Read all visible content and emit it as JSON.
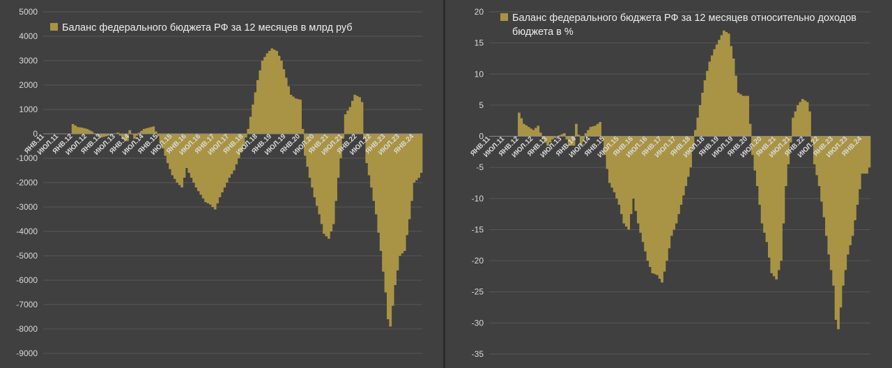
{
  "colors": {
    "background": "#404040",
    "bar": "#a99445",
    "grid": "#575757",
    "text": "#d9d9d9"
  },
  "chart_data": [
    {
      "type": "bar",
      "legend_label": "Баланс федерального бюджета РФ за 12 месяцев в млрд руб",
      "legend_placement": "top-left",
      "grid": true,
      "ylim": [
        -9000,
        5000
      ],
      "y_ticks": [
        "5000",
        "4000",
        "3000",
        "2000",
        "1000",
        "0",
        "-1000",
        "-2000",
        "-3000",
        "-4000",
        "-5000",
        "-6000",
        "-7000",
        "-8000",
        "-9000"
      ],
      "x_tick_labels": [
        "ЯНВ.11",
        "ИЮЛ.11",
        "ЯНВ.12",
        "ИЮЛ.12",
        "ЯНВ.13",
        "ИЮЛ.13",
        "ЯНВ.14",
        "ИЮЛ.14",
        "ЯНВ.15",
        "ИЮЛ.15",
        "ЯНВ.16",
        "ИЮЛ.16",
        "ЯНВ.17",
        "ИЮЛ.17",
        "ЯНВ.18",
        "ИЮЛ.18",
        "ЯНВ.19",
        "ИЮЛ.19",
        "ЯНВ.20",
        "ИЮЛ.20",
        "ЯНВ.21",
        "ИЮЛ.21",
        "ЯНВ.22",
        "ИЮЛ.22",
        "ЯНВ.23",
        "ИЮЛ.23",
        "ЯНВ.24"
      ],
      "months": 160,
      "anchors": [
        [
          0,
          0
        ],
        [
          11,
          0
        ],
        [
          12,
          400
        ],
        [
          14,
          280
        ],
        [
          16,
          250
        ],
        [
          18,
          200
        ],
        [
          20,
          100
        ],
        [
          22,
          -50
        ],
        [
          24,
          -150
        ],
        [
          26,
          -100
        ],
        [
          28,
          -50
        ],
        [
          31,
          50
        ],
        [
          33,
          -200
        ],
        [
          35,
          -300
        ],
        [
          36,
          150
        ],
        [
          38,
          -200
        ],
        [
          40,
          50
        ],
        [
          42,
          200
        ],
        [
          44,
          250
        ],
        [
          46,
          300
        ],
        [
          48,
          -100
        ],
        [
          50,
          -600
        ],
        [
          52,
          -1200
        ],
        [
          54,
          -1700
        ],
        [
          56,
          -2000
        ],
        [
          58,
          -2200
        ],
        [
          60,
          -1400
        ],
        [
          62,
          -1800
        ],
        [
          64,
          -2200
        ],
        [
          66,
          -2500
        ],
        [
          68,
          -2800
        ],
        [
          70,
          -2900
        ],
        [
          72,
          -3100
        ],
        [
          74,
          -2600
        ],
        [
          76,
          -2200
        ],
        [
          78,
          -1800
        ],
        [
          80,
          -1500
        ],
        [
          82,
          -1000
        ],
        [
          84,
          -500
        ],
        [
          86,
          200
        ],
        [
          88,
          1200
        ],
        [
          90,
          2200
        ],
        [
          92,
          3000
        ],
        [
          94,
          3300
        ],
        [
          96,
          3500
        ],
        [
          98,
          3400
        ],
        [
          100,
          3000
        ],
        [
          102,
          2300
        ],
        [
          104,
          1600
        ],
        [
          106,
          1450
        ],
        [
          108,
          1400
        ],
        [
          109,
          200
        ],
        [
          110,
          -900
        ],
        [
          112,
          -1800
        ],
        [
          114,
          -2600
        ],
        [
          116,
          -3300
        ],
        [
          118,
          -4100
        ],
        [
          120,
          -4300
        ],
        [
          122,
          -3700
        ],
        [
          124,
          -1800
        ],
        [
          126,
          -200
        ],
        [
          127,
          800
        ],
        [
          129,
          1100
        ],
        [
          131,
          1600
        ],
        [
          133,
          1500
        ],
        [
          134,
          1300
        ],
        [
          135,
          -200
        ],
        [
          136,
          -1200
        ],
        [
          138,
          -2200
        ],
        [
          140,
          -3300
        ],
        [
          142,
          -4800
        ],
        [
          144,
          -6500
        ],
        [
          145,
          -7600
        ],
        [
          146,
          -7900
        ],
        [
          148,
          -6200
        ],
        [
          150,
          -5000
        ],
        [
          152,
          -4800
        ],
        [
          154,
          -3500
        ],
        [
          156,
          -2000
        ],
        [
          158,
          -1800
        ],
        [
          159,
          -1600
        ]
      ]
    },
    {
      "type": "bar",
      "legend_label": "Баланс федерального бюджета РФ за 12 месяцев относительно доходов бюджета в %",
      "legend_placement": "top-left",
      "grid": true,
      "ylim": [
        -35,
        20
      ],
      "y_ticks": [
        "20",
        "15",
        "10",
        "5",
        "0",
        "-5",
        "-10",
        "-15",
        "-20",
        "-25",
        "-30",
        "-35"
      ],
      "x_tick_labels": [
        "ЯНВ.11",
        "ИЮЛ.11",
        "ЯНВ.12",
        "ИЮЛ.12",
        "ЯНВ.13",
        "ИЮЛ.13",
        "ЯНВ.14",
        "ИЮЛ.14",
        "ЯНВ.15",
        "ИЮЛ.15",
        "ЯНВ.16",
        "ИЮЛ.16",
        "ЯНВ.17",
        "ИЮЛ.17",
        "ЯНВ.18",
        "ИЮЛ.18",
        "ЯНВ.19",
        "ИЮЛ.19",
        "ЯНВ.20",
        "ИЮЛ.20",
        "ЯНВ.21",
        "ИЮЛ.21",
        "ЯНВ.22",
        "ИЮЛ.22",
        "ЯНВ.23",
        "ИЮЛ.23",
        "ЯНВ.24"
      ],
      "months": 160,
      "anchors": [
        [
          0,
          0
        ],
        [
          11,
          0
        ],
        [
          12,
          3.8
        ],
        [
          14,
          2
        ],
        [
          16,
          1.5
        ],
        [
          18,
          1
        ],
        [
          20,
          1.7
        ],
        [
          22,
          -0.5
        ],
        [
          24,
          -1.5
        ],
        [
          26,
          -0.5
        ],
        [
          28,
          0
        ],
        [
          31,
          0.5
        ],
        [
          33,
          -1.5
        ],
        [
          35,
          -1.5
        ],
        [
          36,
          2
        ],
        [
          38,
          -1.5
        ],
        [
          40,
          0.5
        ],
        [
          42,
          1.5
        ],
        [
          44,
          1.7
        ],
        [
          46,
          2.3
        ],
        [
          48,
          -3
        ],
        [
          50,
          -7.5
        ],
        [
          52,
          -9
        ],
        [
          54,
          -11
        ],
        [
          56,
          -14
        ],
        [
          58,
          -15
        ],
        [
          60,
          -10
        ],
        [
          62,
          -14
        ],
        [
          64,
          -17
        ],
        [
          66,
          -20
        ],
        [
          68,
          -22
        ],
        [
          70,
          -22.3
        ],
        [
          72,
          -23.5
        ],
        [
          74,
          -20
        ],
        [
          76,
          -16
        ],
        [
          78,
          -14
        ],
        [
          80,
          -11
        ],
        [
          82,
          -8
        ],
        [
          84,
          -5
        ],
        [
          86,
          1
        ],
        [
          88,
          5
        ],
        [
          90,
          9
        ],
        [
          92,
          12
        ],
        [
          94,
          14
        ],
        [
          96,
          15.5
        ],
        [
          98,
          17
        ],
        [
          100,
          16.5
        ],
        [
          102,
          12.5
        ],
        [
          104,
          7
        ],
        [
          106,
          6.5
        ],
        [
          108,
          6.5
        ],
        [
          109,
          2
        ],
        [
          110,
          -3
        ],
        [
          112,
          -8
        ],
        [
          114,
          -14
        ],
        [
          116,
          -17
        ],
        [
          118,
          -22
        ],
        [
          120,
          -23
        ],
        [
          122,
          -20
        ],
        [
          124,
          -8
        ],
        [
          126,
          -1
        ],
        [
          127,
          3
        ],
        [
          129,
          5
        ],
        [
          131,
          6
        ],
        [
          133,
          5.5
        ],
        [
          134,
          4
        ],
        [
          135,
          -1
        ],
        [
          136,
          -4.5
        ],
        [
          138,
          -8
        ],
        [
          140,
          -13
        ],
        [
          142,
          -19
        ],
        [
          144,
          -24
        ],
        [
          145,
          -29.5
        ],
        [
          146,
          -31
        ],
        [
          148,
          -24
        ],
        [
          150,
          -19
        ],
        [
          152,
          -16
        ],
        [
          154,
          -11
        ],
        [
          156,
          -6
        ],
        [
          158,
          -6
        ],
        [
          159,
          -5
        ]
      ]
    }
  ]
}
